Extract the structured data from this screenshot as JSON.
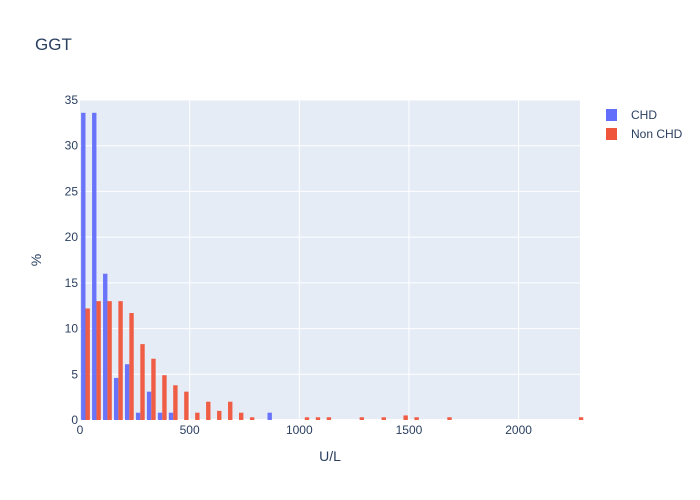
{
  "chart_data": {
    "type": "bar",
    "title": "GGT",
    "xlabel": "U/L",
    "ylabel": "%",
    "xlim": [
      0,
      2280
    ],
    "ylim": [
      0,
      35
    ],
    "bin_width": 50,
    "x_ticks": [
      0,
      500,
      1000,
      1500,
      2000
    ],
    "y_ticks": [
      0,
      5,
      10,
      15,
      20,
      25,
      30,
      35
    ],
    "legend_position": "top-right",
    "grid": true,
    "series": [
      {
        "name": "CHD",
        "color": "#636efa",
        "bins": [
          {
            "x": 0,
            "value": 33.6
          },
          {
            "x": 50,
            "value": 33.6
          },
          {
            "x": 100,
            "value": 16.0
          },
          {
            "x": 150,
            "value": 4.6
          },
          {
            "x": 200,
            "value": 6.1
          },
          {
            "x": 250,
            "value": 0.8
          },
          {
            "x": 300,
            "value": 3.1
          },
          {
            "x": 350,
            "value": 0.8
          },
          {
            "x": 400,
            "value": 0.8
          },
          {
            "x": 850,
            "value": 0.8
          }
        ]
      },
      {
        "name": "Non CHD",
        "color": "#ef553b",
        "bins": [
          {
            "x": 0,
            "value": 12.2
          },
          {
            "x": 50,
            "value": 13.0
          },
          {
            "x": 100,
            "value": 13.0
          },
          {
            "x": 150,
            "value": 13.0
          },
          {
            "x": 200,
            "value": 11.7
          },
          {
            "x": 250,
            "value": 8.3
          },
          {
            "x": 300,
            "value": 6.7
          },
          {
            "x": 350,
            "value": 4.9
          },
          {
            "x": 400,
            "value": 3.8
          },
          {
            "x": 450,
            "value": 3.1
          },
          {
            "x": 500,
            "value": 0.8
          },
          {
            "x": 550,
            "value": 2.0
          },
          {
            "x": 600,
            "value": 1.0
          },
          {
            "x": 650,
            "value": 2.0
          },
          {
            "x": 700,
            "value": 0.8
          },
          {
            "x": 750,
            "value": 0.3
          },
          {
            "x": 1000,
            "value": 0.3
          },
          {
            "x": 1050,
            "value": 0.3
          },
          {
            "x": 1100,
            "value": 0.3
          },
          {
            "x": 1250,
            "value": 0.3
          },
          {
            "x": 1350,
            "value": 0.3
          },
          {
            "x": 1450,
            "value": 0.5
          },
          {
            "x": 1500,
            "value": 0.3
          },
          {
            "x": 1650,
            "value": 0.3
          },
          {
            "x": 2250,
            "value": 0.3
          }
        ]
      }
    ]
  }
}
